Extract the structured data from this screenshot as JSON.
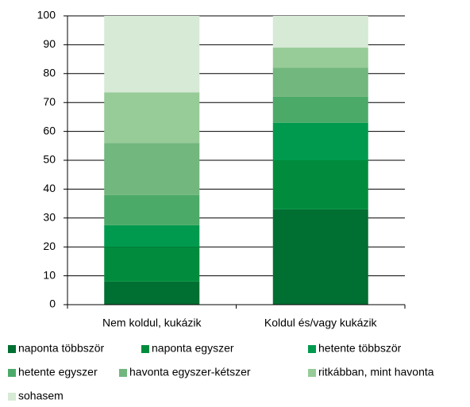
{
  "chart_data": {
    "type": "stacked_bar",
    "categories": [
      "Nem koldul, kukázik",
      "Koldul és/vagy kukázik"
    ],
    "series": [
      {
        "name": "naponta többször",
        "color": "#006f32",
        "values": [
          8,
          33
        ]
      },
      {
        "name": "naponta egyszer",
        "color": "#008c3c",
        "values": [
          12,
          17
        ]
      },
      {
        "name": "hetente többször",
        "color": "#009a4e",
        "values": [
          7.5,
          13
        ]
      },
      {
        "name": "hetente egyszer",
        "color": "#4caa68",
        "values": [
          10.5,
          9
        ]
      },
      {
        "name": "havonta egyszer-kétszer",
        "color": "#72b77e",
        "values": [
          18,
          10
        ]
      },
      {
        "name": "ritkábban, mint havonta",
        "color": "#97cb97",
        "values": [
          17.5,
          7
        ]
      },
      {
        "name": "sohasem",
        "color": "#d6ead5",
        "values": [
          26.5,
          11
        ]
      }
    ],
    "ylim": [
      0,
      100
    ],
    "yticks": [
      0,
      10,
      20,
      30,
      40,
      50,
      60,
      70,
      80,
      90,
      100
    ],
    "grid": true
  }
}
